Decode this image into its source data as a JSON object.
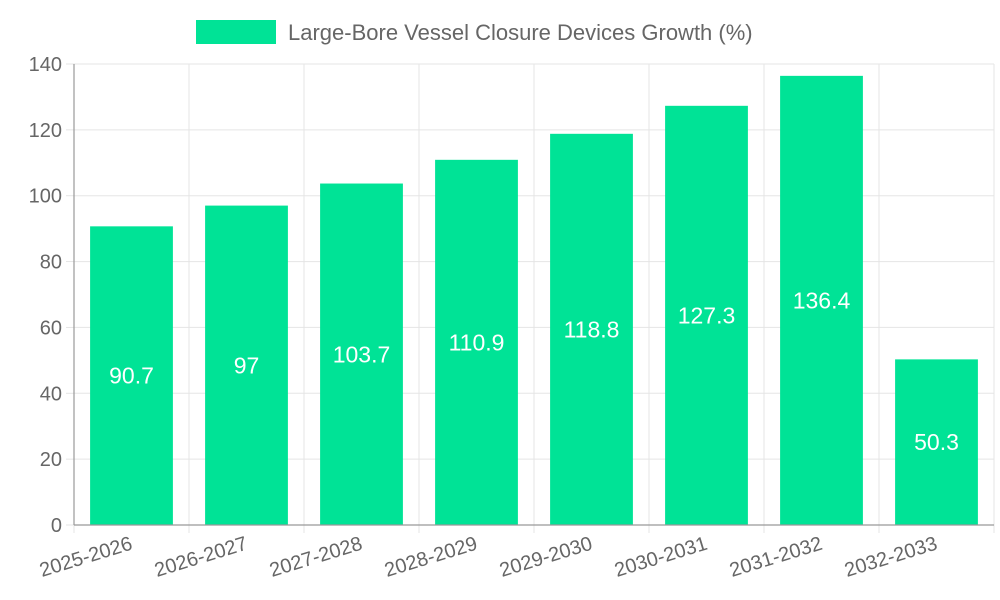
{
  "chart_data": {
    "type": "bar",
    "title": "",
    "xlabel": "",
    "ylabel": "",
    "legend": {
      "position": "top",
      "entries": [
        {
          "label": "Large-Bore Vessel Closure Devices Growth (%)",
          "color": "#00e396"
        }
      ]
    },
    "categories": [
      "2025-2026",
      "2026-2027",
      "2027-2028",
      "2028-2029",
      "2029-2030",
      "2030-2031",
      "2031-2032",
      "2032-2033"
    ],
    "series": [
      {
        "name": "Large-Bore Vessel Closure Devices Growth (%)",
        "values": [
          90.7,
          97,
          103.7,
          110.9,
          118.8,
          127.3,
          136.4,
          50.3
        ],
        "value_labels": [
          "90.7",
          "97",
          "103.7",
          "110.9",
          "118.8",
          "127.3",
          "136.4",
          "50.3"
        ],
        "color": "#00e396"
      }
    ],
    "ylim": [
      0,
      140
    ],
    "yticks": [
      "0",
      "20",
      "40",
      "60",
      "80",
      "100",
      "120",
      "140"
    ],
    "grid": true,
    "colors": {
      "bar": "#00e396",
      "grid": "#e5e5e5",
      "axis": "#999999",
      "tick_text": "#666666",
      "bar_label": "#ffffff"
    }
  }
}
